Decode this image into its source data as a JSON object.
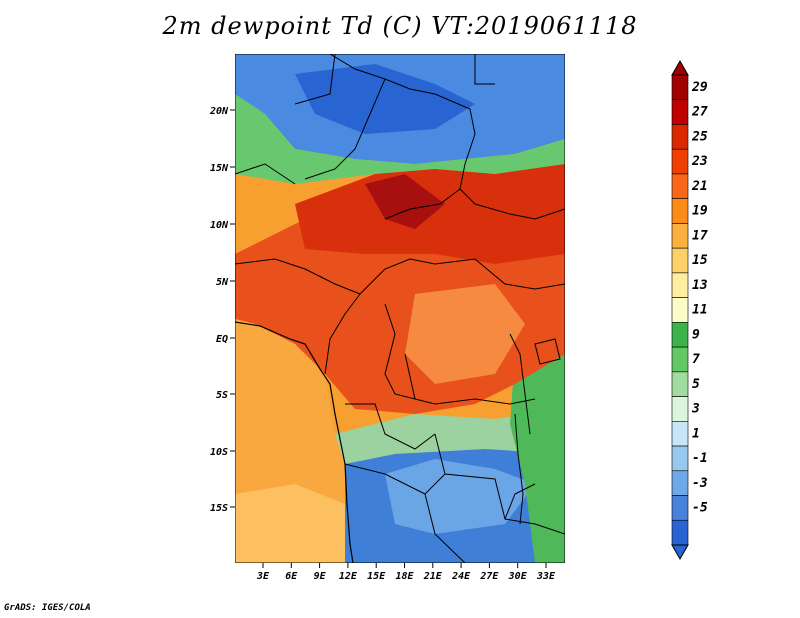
{
  "title": "2m dewpoint Td (C) VT:2019061118",
  "credit": "GrADS: IGES/COLA",
  "map": {
    "lat_labels": [
      "20N",
      "15N",
      "10N",
      "5N",
      "EQ",
      "5S",
      "10S",
      "15S"
    ],
    "lon_labels": [
      "3E",
      "6E",
      "9E",
      "12E",
      "15E",
      "18E",
      "21E",
      "24E",
      "27E",
      "30E",
      "33E"
    ]
  },
  "colorbar": {
    "labels": [
      "29",
      "27",
      "25",
      "23",
      "21",
      "19",
      "17",
      "15",
      "13",
      "11",
      "9",
      "7",
      "5",
      "3",
      "1",
      "-1",
      "-3",
      "-5"
    ],
    "colors": [
      "#a00000",
      "#c00000",
      "#dc2800",
      "#f04000",
      "#f86818",
      "#fb8c1a",
      "#fcb040",
      "#fdd068",
      "#fdeea0",
      "#fcfcc8",
      "#3cb44b",
      "#64c864",
      "#a0dca0",
      "#dcf5dc",
      "#c8e6f8",
      "#96c8f0",
      "#6ea8e8",
      "#4682dc",
      "#2864d2"
    ]
  }
}
